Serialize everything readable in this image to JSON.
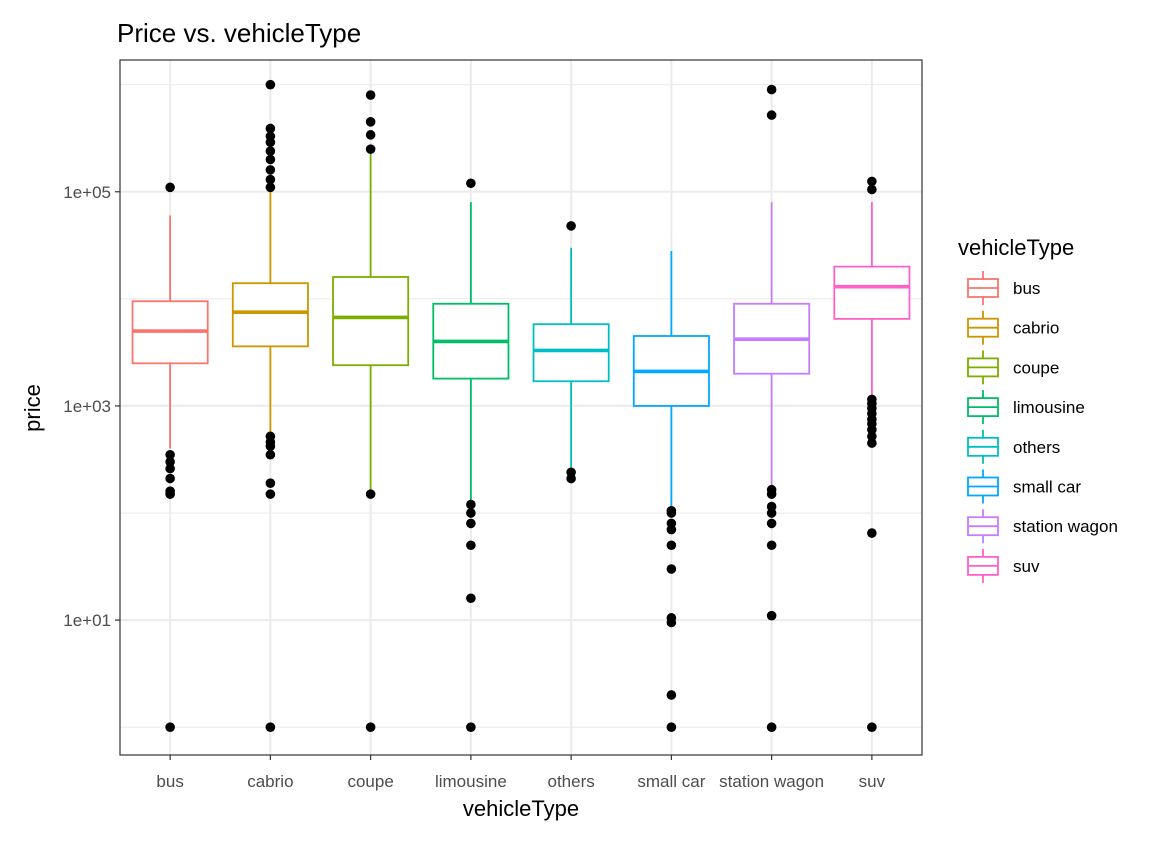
{
  "chart_data": {
    "type": "box",
    "title": "Price vs. vehicleType",
    "xlabel": "vehicleType",
    "ylabel": "price",
    "y_scale": "log10",
    "ylim": [
      0.55,
      1700000
    ],
    "y_ticks": [
      10,
      1000,
      100000
    ],
    "y_tick_labels": [
      "1e+01",
      "1e+03",
      "1e+05"
    ],
    "grid": true,
    "legend": {
      "title": "vehicleType",
      "placement": "right"
    },
    "categories": [
      "bus",
      "cabrio",
      "coupe",
      "limousine",
      "others",
      "small car",
      "station wagon",
      "suv"
    ],
    "series": [
      {
        "name": "bus",
        "color": "#F8766D",
        "whisker_low": 400,
        "q1": 2500,
        "median": 5000,
        "q3": 9500,
        "whisker_high": 60000,
        "outliers": [
          1,
          150,
          160,
          210,
          260,
          300,
          350,
          110000
        ]
      },
      {
        "name": "cabrio",
        "color": "#CD9600",
        "whisker_low": 550,
        "q1": 3600,
        "median": 7500,
        "q3": 14000,
        "whisker_high": 100000,
        "outliers": [
          1,
          150,
          190,
          350,
          420,
          460,
          520,
          110000,
          130000,
          160000,
          200000,
          240000,
          290000,
          330000,
          390000,
          1000000
        ]
      },
      {
        "name": "coupe",
        "color": "#7CAE00",
        "whisker_low": 150,
        "q1": 2400,
        "median": 6700,
        "q3": 16000,
        "whisker_high": 230000,
        "outliers": [
          1,
          150,
          250000,
          340000,
          450000,
          800000
        ]
      },
      {
        "name": "limousine",
        "color": "#00BE67",
        "whisker_low": 130,
        "q1": 1800,
        "median": 4000,
        "q3": 9000,
        "whisker_high": 80000,
        "outliers": [
          1,
          16,
          50,
          80,
          100,
          120,
          120000
        ]
      },
      {
        "name": "others",
        "color": "#00BFC4",
        "whisker_low": 250,
        "q1": 1700,
        "median": 3300,
        "q3": 5800,
        "whisker_high": 30000,
        "outliers": [
          210,
          240,
          48000
        ]
      },
      {
        "name": "small car",
        "color": "#00A9FF",
        "whisker_low": 110,
        "q1": 1000,
        "median": 2100,
        "q3": 4500,
        "whisker_high": 28000,
        "outliers": [
          1,
          2,
          9.5,
          10.5,
          30,
          50,
          70,
          80,
          100,
          105
        ]
      },
      {
        "name": "station wagon",
        "color": "#C77CFF",
        "whisker_low": 175,
        "q1": 2000,
        "median": 4200,
        "q3": 9000,
        "whisker_high": 80000,
        "outliers": [
          1,
          11,
          50,
          80,
          100,
          115,
          150,
          165,
          520000,
          900000
        ]
      },
      {
        "name": "suv",
        "color": "#FF61CC",
        "whisker_low": 1200,
        "q1": 6500,
        "median": 13000,
        "q3": 20000,
        "whisker_high": 80000,
        "outliers": [
          1,
          65,
          450,
          520,
          600,
          680,
          750,
          850,
          950,
          1050,
          1150,
          105000,
          125000
        ]
      }
    ]
  }
}
